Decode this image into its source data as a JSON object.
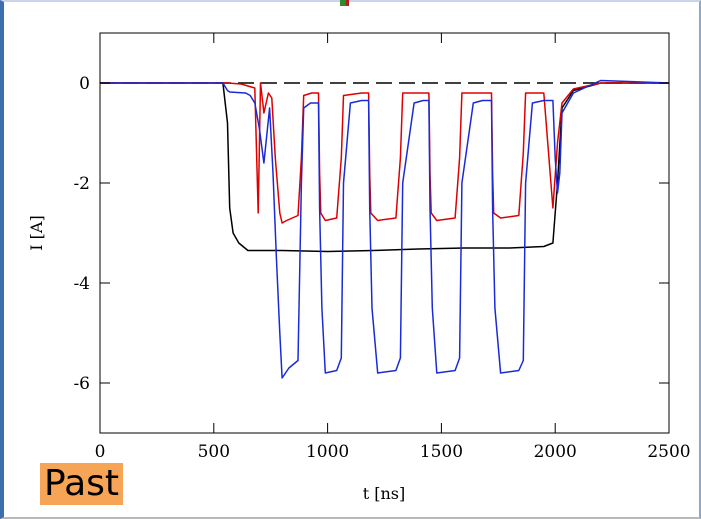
{
  "overlay": {
    "label": "Past",
    "label_color": "#f6a455"
  },
  "chart_data": {
    "type": "line",
    "xlabel": "t [ns]",
    "ylabel": "I [A]",
    "xlim": [
      0,
      2500
    ],
    "ylim": [
      -7,
      1
    ],
    "xticks": [
      0,
      500,
      1000,
      1500,
      2000,
      2500
    ],
    "yticks": [
      0,
      -2,
      -4,
      -6
    ],
    "grid": false,
    "series": [
      {
        "color": "#000000",
        "style": "dashed",
        "x": [
          0,
          2500
        ],
        "y": [
          0,
          0
        ]
      },
      {
        "color": "#000000",
        "style": "solid",
        "x": [
          0,
          540,
          560,
          570,
          585,
          610,
          650,
          800,
          1000,
          1200,
          1400,
          1600,
          1800,
          1950,
          1990,
          2010,
          2030,
          2080,
          2200,
          2500
        ],
        "y": [
          0,
          0,
          -0.8,
          -2.5,
          -3.0,
          -3.2,
          -3.35,
          -3.35,
          -3.37,
          -3.35,
          -3.32,
          -3.3,
          -3.3,
          -3.27,
          -3.2,
          -2.0,
          -0.5,
          -0.15,
          0,
          0
        ]
      },
      {
        "color": "#dd0000",
        "style": "solid",
        "x": [
          0,
          540,
          560,
          620,
          680,
          695,
          705,
          720,
          740,
          755,
          770,
          790,
          800,
          820,
          870,
          885,
          895,
          930,
          960,
          965,
          970,
          990,
          1040,
          1060,
          1070,
          1150,
          1180,
          1185,
          1190,
          1220,
          1300,
          1320,
          1330,
          1420,
          1445,
          1450,
          1455,
          1480,
          1560,
          1580,
          1590,
          1680,
          1720,
          1725,
          1730,
          1760,
          1840,
          1860,
          1870,
          1950,
          1990,
          2010,
          2030,
          2080,
          2200,
          2500
        ],
        "y": [
          0,
          0,
          0,
          -0.02,
          -0.1,
          -2.6,
          0,
          -0.6,
          -0.2,
          -0.3,
          -1.5,
          -2.6,
          -2.8,
          -2.75,
          -2.65,
          -1.5,
          -0.25,
          -0.2,
          -0.2,
          -1.8,
          -2.6,
          -2.75,
          -2.7,
          -1.5,
          -0.25,
          -0.2,
          -0.2,
          -1.8,
          -2.6,
          -2.75,
          -2.7,
          -1.5,
          -0.2,
          -0.2,
          -0.2,
          -1.8,
          -2.6,
          -2.75,
          -2.7,
          -1.5,
          -0.2,
          -0.2,
          -0.2,
          -1.8,
          -2.6,
          -2.7,
          -2.65,
          -1.4,
          -0.2,
          -0.2,
          -2.5,
          -1.2,
          -0.4,
          -0.12,
          0,
          0
        ]
      },
      {
        "color": "#1a2bd6",
        "style": "solid",
        "x": [
          0,
          540,
          560,
          570,
          640,
          660,
          680,
          700,
          720,
          745,
          760,
          775,
          790,
          800,
          830,
          870,
          885,
          895,
          925,
          960,
          965,
          975,
          990,
          1040,
          1060,
          1070,
          1100,
          1150,
          1180,
          1185,
          1195,
          1220,
          1300,
          1320,
          1330,
          1380,
          1420,
          1445,
          1450,
          1460,
          1480,
          1560,
          1580,
          1590,
          1640,
          1680,
          1720,
          1725,
          1735,
          1760,
          1840,
          1860,
          1870,
          1900,
          1950,
          1990,
          2000,
          2010,
          2020,
          2030,
          2080,
          2200,
          2500
        ],
        "y": [
          0,
          0,
          -0.15,
          -0.18,
          -0.2,
          -0.25,
          -0.4,
          -0.9,
          -1.6,
          -0.5,
          -1.8,
          -3.5,
          -5.0,
          -5.9,
          -5.7,
          -5.55,
          -2.0,
          -0.5,
          -0.4,
          -0.4,
          -2.5,
          -4.5,
          -5.8,
          -5.75,
          -5.5,
          -2.0,
          -0.4,
          -0.35,
          -0.35,
          -2.5,
          -4.5,
          -5.8,
          -5.75,
          -5.5,
          -2.0,
          -0.4,
          -0.35,
          -0.35,
          -2.5,
          -4.5,
          -5.8,
          -5.75,
          -5.5,
          -2.0,
          -0.4,
          -0.35,
          -0.35,
          -2.5,
          -4.5,
          -5.8,
          -5.75,
          -5.55,
          -2.0,
          -0.4,
          -0.35,
          -0.35,
          -1.5,
          -2.2,
          -1.8,
          -0.6,
          -0.2,
          0.05,
          0
        ]
      }
    ]
  }
}
